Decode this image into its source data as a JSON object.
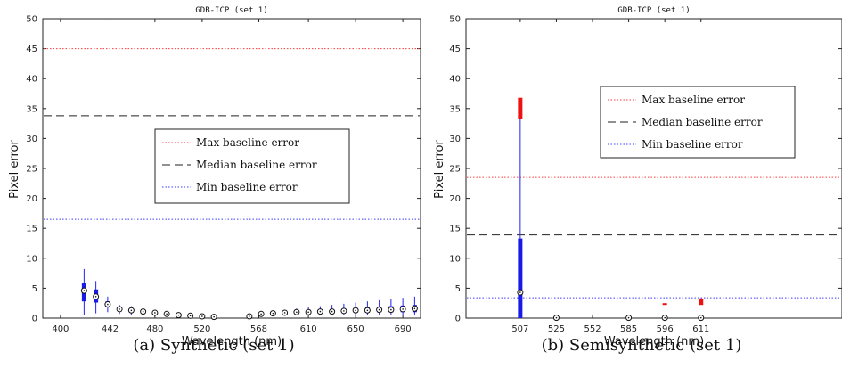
{
  "chart_data": [
    {
      "type": "box",
      "title": "GDB-ICP (set 1)",
      "caption": "(a) Synthetic (set 1)",
      "xlabel": "Wavelength (nm)",
      "ylabel": "Pixel error",
      "xlim": [
        385,
        705
      ],
      "ylim": [
        0,
        50
      ],
      "x_ticks": [
        400,
        442,
        480,
        520,
        568,
        610,
        650,
        690
      ],
      "y_ticks": [
        0,
        5,
        10,
        15,
        20,
        25,
        30,
        35,
        40,
        45,
        50
      ],
      "baselines": [
        {
          "name": "Max baseline error",
          "value": 45.0,
          "color": "#ff3b3b",
          "style": "dotted"
        },
        {
          "name": "Median baseline error",
          "value": 33.8,
          "color": "#222222",
          "style": "dashed"
        },
        {
          "name": "Min baseline error",
          "value": 16.5,
          "color": "#3b3bff",
          "style": "dotted"
        }
      ],
      "legend_position": "center-right",
      "boxes": [
        {
          "x": 420,
          "wlo": 0.5,
          "q1": 2.8,
          "med": 4.6,
          "q3": 5.8,
          "whi": 8.2
        },
        {
          "x": 430,
          "wlo": 0.8,
          "q1": 2.6,
          "med": 3.6,
          "q3": 4.8,
          "whi": 6.2
        },
        {
          "x": 440,
          "wlo": 1.0,
          "q1": 1.8,
          "med": 2.3,
          "q3": 2.8,
          "whi": 3.6
        },
        {
          "x": 450,
          "wlo": 0.7,
          "q1": 1.2,
          "med": 1.5,
          "q3": 1.8,
          "whi": 2.2
        },
        {
          "x": 460,
          "wlo": 0.6,
          "q1": 1.0,
          "med": 1.3,
          "q3": 1.6,
          "whi": 2.0
        },
        {
          "x": 470,
          "wlo": 0.5,
          "q1": 0.8,
          "med": 1.1,
          "q3": 1.3,
          "whi": 1.6
        },
        {
          "x": 480,
          "wlo": 0.4,
          "q1": 0.7,
          "med": 0.9,
          "q3": 1.1,
          "whi": 1.4
        },
        {
          "x": 490,
          "wlo": 0.3,
          "q1": 0.5,
          "med": 0.7,
          "q3": 0.8,
          "whi": 1.0
        },
        {
          "x": 500,
          "wlo": 0.2,
          "q1": 0.4,
          "med": 0.5,
          "q3": 0.6,
          "whi": 0.8
        },
        {
          "x": 510,
          "wlo": 0.2,
          "q1": 0.3,
          "med": 0.4,
          "q3": 0.5,
          "whi": 0.7
        },
        {
          "x": 520,
          "wlo": 0.1,
          "q1": 0.2,
          "med": 0.3,
          "q3": 0.4,
          "whi": 0.6
        },
        {
          "x": 530,
          "wlo": 0.1,
          "q1": 0.2,
          "med": 0.2,
          "q3": 0.3,
          "whi": 0.5
        },
        {
          "x": 560,
          "wlo": 0.1,
          "q1": 0.2,
          "med": 0.3,
          "q3": 0.4,
          "whi": 0.6
        },
        {
          "x": 570,
          "wlo": 0.3,
          "q1": 0.5,
          "med": 0.7,
          "q3": 0.8,
          "whi": 1.0
        },
        {
          "x": 580,
          "wlo": 0.4,
          "q1": 0.6,
          "med": 0.8,
          "q3": 1.0,
          "whi": 1.2
        },
        {
          "x": 590,
          "wlo": 0.5,
          "q1": 0.7,
          "med": 0.9,
          "q3": 1.1,
          "whi": 1.4
        },
        {
          "x": 600,
          "wlo": 0.5,
          "q1": 0.8,
          "med": 1.0,
          "q3": 1.2,
          "whi": 1.6
        },
        {
          "x": 610,
          "wlo": 0.5,
          "q1": 0.8,
          "med": 1.0,
          "q3": 1.3,
          "whi": 1.8
        },
        {
          "x": 620,
          "wlo": 0.5,
          "q1": 0.8,
          "med": 1.1,
          "q3": 1.4,
          "whi": 2.0
        },
        {
          "x": 630,
          "wlo": 0.5,
          "q1": 0.8,
          "med": 1.1,
          "q3": 1.5,
          "whi": 2.2
        },
        {
          "x": 640,
          "wlo": 0.5,
          "q1": 0.9,
          "med": 1.2,
          "q3": 1.6,
          "whi": 2.4
        },
        {
          "x": 650,
          "wlo": 0.5,
          "q1": 0.9,
          "med": 1.3,
          "q3": 1.7,
          "whi": 2.6
        },
        {
          "x": 660,
          "wlo": 0.5,
          "q1": 0.9,
          "med": 1.3,
          "q3": 1.8,
          "whi": 2.8
        },
        {
          "x": 670,
          "wlo": 0.5,
          "q1": 1.0,
          "med": 1.4,
          "q3": 1.9,
          "whi": 3.0
        },
        {
          "x": 680,
          "wlo": 0.5,
          "q1": 1.0,
          "med": 1.4,
          "q3": 2.0,
          "whi": 3.2
        },
        {
          "x": 690,
          "wlo": 0.5,
          "q1": 1.0,
          "med": 1.5,
          "q3": 2.1,
          "whi": 3.4
        },
        {
          "x": 700,
          "wlo": 0.5,
          "q1": 1.0,
          "med": 1.6,
          "q3": 2.2,
          "whi": 3.6
        }
      ]
    },
    {
      "type": "box",
      "title": "GDB-ICP (set 1)",
      "caption": "(b) Semisynthetic (set 1)",
      "xlabel": "Wavelength (nm)",
      "ylabel": "Pixel error",
      "categories": [
        "507",
        "525",
        "552",
        "585",
        "596",
        "611"
      ],
      "xlim": [
        -1.5,
        8.9
      ],
      "ylim": [
        0,
        50
      ],
      "x_ticks": [
        0,
        1,
        2,
        3,
        4,
        5
      ],
      "y_ticks": [
        0,
        5,
        10,
        15,
        20,
        25,
        30,
        35,
        40,
        45,
        50
      ],
      "baselines": [
        {
          "name": "Max baseline error",
          "value": 23.5,
          "color": "#ff3b3b",
          "style": "dotted"
        },
        {
          "name": "Median baseline error",
          "value": 13.9,
          "color": "#222222",
          "style": "dashed"
        },
        {
          "name": "Min baseline error",
          "value": 3.4,
          "color": "#3b3bff",
          "style": "dotted"
        }
      ],
      "legend_position": "top-right",
      "boxes": [
        {
          "cat": 0,
          "wlo": 0.0,
          "q1": 0.0,
          "med": 4.3,
          "q3": 13.3,
          "whi": 33.3
        },
        {
          "cat": 1,
          "wlo": 0.0,
          "q1": 0.0,
          "med": 0.05,
          "q3": 0.1,
          "whi": 0.2
        },
        {
          "cat": 3,
          "wlo": 0.0,
          "q1": 0.0,
          "med": 0.05,
          "q3": 0.1,
          "whi": 0.2
        },
        {
          "cat": 4,
          "wlo": 0.0,
          "q1": 0.0,
          "med": 0.05,
          "q3": 0.1,
          "whi": 0.2
        },
        {
          "cat": 5,
          "wlo": 0.0,
          "q1": 0.0,
          "med": 0.05,
          "q3": 0.1,
          "whi": 0.2
        }
      ],
      "outliers": [
        {
          "cat": 0,
          "from": 33.3,
          "to": 36.8
        },
        {
          "cat": 4,
          "from": 2.2,
          "to": 2.5
        },
        {
          "cat": 5,
          "from": 2.2,
          "to": 3.3
        }
      ]
    }
  ]
}
